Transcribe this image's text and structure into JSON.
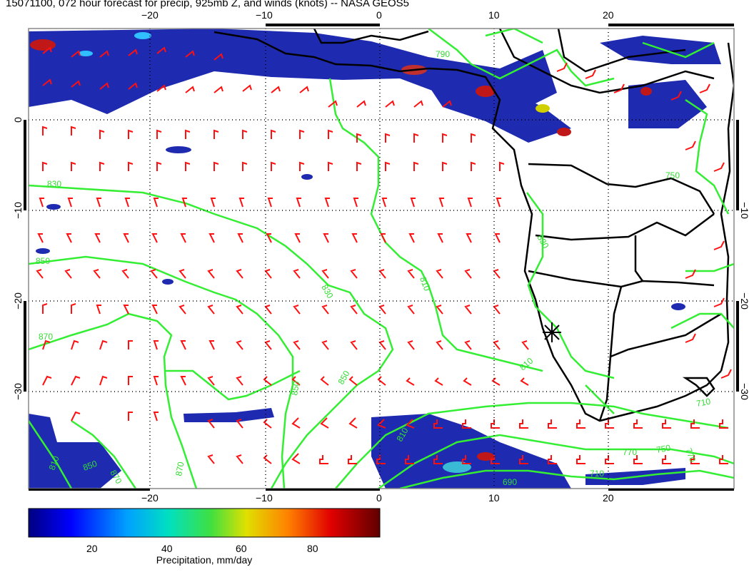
{
  "title": "15071100, 072 hour forecast for precip, 925mb Z, and winds (knots) -- NASA GEOS5",
  "map": {
    "lon_range": [
      -30,
      30
    ],
    "lat_range": [
      -40,
      10
    ],
    "x_tick_labels": [
      "−20",
      "−10",
      "0",
      "10",
      "20"
    ],
    "y_tick_labels": [
      "0",
      "−10",
      "−20",
      "−30"
    ],
    "grid": "dotted 10 degree",
    "contour_labels": [
      "830",
      "850",
      "870",
      "830",
      "810",
      "850",
      "850",
      "870",
      "830",
      "790",
      "810",
      "810",
      "750",
      "770",
      "770",
      "710",
      "750",
      "690",
      "710",
      "810",
      "850",
      "870"
    ],
    "marker": "star"
  },
  "colorbar": {
    "tick_labels": [
      "20",
      "40",
      "60",
      "80"
    ],
    "label": "Precipitation, mm/day"
  },
  "colors": {
    "wind_barbs": "#ff0000",
    "contours": "#33ee33",
    "coastlines": "#000000",
    "precip_low": "#1a1aa8"
  }
}
